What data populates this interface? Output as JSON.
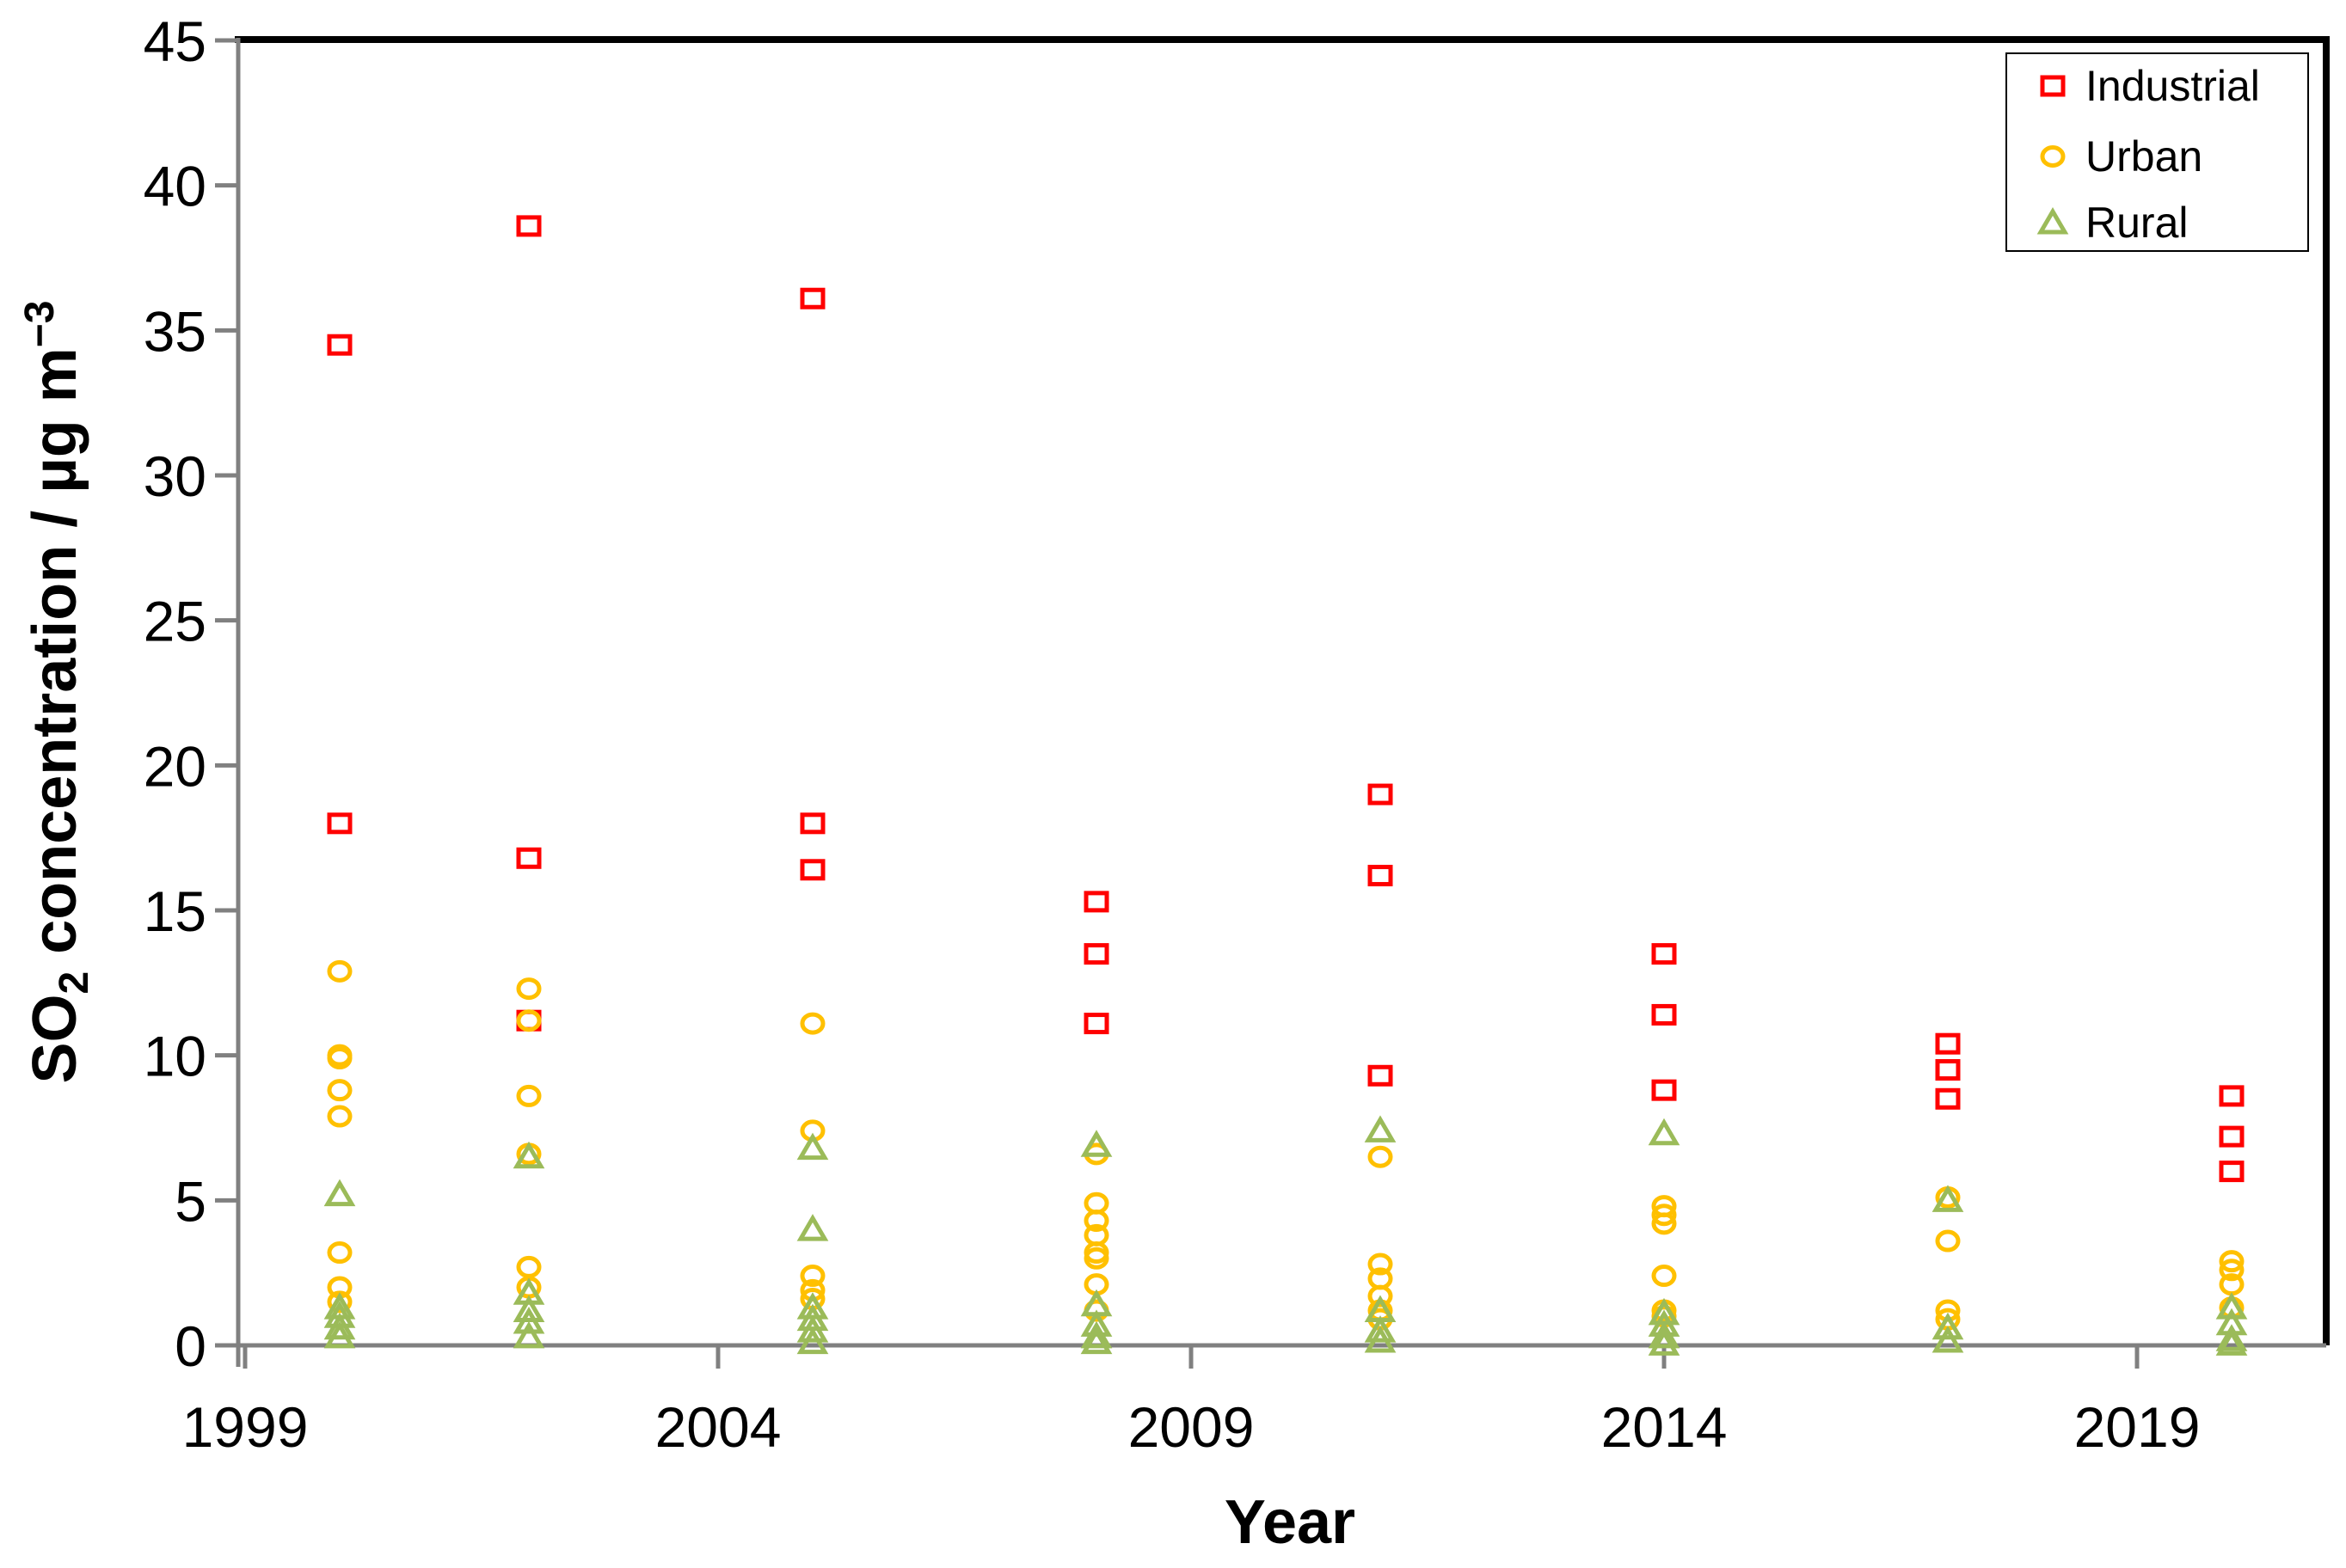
{
  "chart_data": {
    "type": "scatter",
    "title": "",
    "xlabel": "Year",
    "ylabel": "SO2 concentration / µg m−3",
    "ylabel_parts": {
      "prefix": "SO",
      "sub": "2",
      "mid": " concentration / µg m",
      "sup": "−3"
    },
    "xlim": [
      1999,
      2021
    ],
    "ylim": [
      0,
      45
    ],
    "x_ticks": [
      1999,
      2004,
      2009,
      2014,
      2019
    ],
    "y_ticks": [
      0,
      5,
      10,
      15,
      20,
      25,
      30,
      35,
      40,
      45
    ],
    "grid": false,
    "legend_position": "top-right",
    "colors": {
      "axis_line": "#808080",
      "plot_border": "#000000",
      "industrial": "#FF0000",
      "urban": "#FFC000",
      "rural": "#9BBB59"
    },
    "series": [
      {
        "name": "Industrial",
        "marker": "square",
        "color": "#FF0000",
        "points": [
          [
            2000,
            34.5
          ],
          [
            2000,
            18.0
          ],
          [
            2002,
            38.6
          ],
          [
            2002,
            16.8
          ],
          [
            2002,
            11.2
          ],
          [
            2005,
            36.1
          ],
          [
            2005,
            18.0
          ],
          [
            2005,
            16.4
          ],
          [
            2008,
            15.3
          ],
          [
            2008,
            13.5
          ],
          [
            2008,
            11.1
          ],
          [
            2011,
            19.0
          ],
          [
            2011,
            16.2
          ],
          [
            2011,
            9.3
          ],
          [
            2014,
            13.5
          ],
          [
            2014,
            11.4
          ],
          [
            2014,
            8.8
          ],
          [
            2017,
            10.4
          ],
          [
            2017,
            9.5
          ],
          [
            2017,
            8.5
          ],
          [
            2020,
            8.6
          ],
          [
            2020,
            7.2
          ],
          [
            2020,
            6.0
          ]
        ]
      },
      {
        "name": "Urban",
        "marker": "circle",
        "color": "#FFC000",
        "points": [
          [
            2000,
            12.9
          ],
          [
            2000,
            10.0
          ],
          [
            2000,
            9.9
          ],
          [
            2000,
            8.8
          ],
          [
            2000,
            7.9
          ],
          [
            2000,
            3.2
          ],
          [
            2000,
            2.0
          ],
          [
            2000,
            1.5
          ],
          [
            2002,
            12.3
          ],
          [
            2002,
            11.2
          ],
          [
            2002,
            8.6
          ],
          [
            2002,
            6.6
          ],
          [
            2002,
            2.7
          ],
          [
            2002,
            2.0
          ],
          [
            2005,
            11.1
          ],
          [
            2005,
            7.4
          ],
          [
            2005,
            2.4
          ],
          [
            2005,
            1.9
          ],
          [
            2005,
            1.6
          ],
          [
            2008,
            6.6
          ],
          [
            2008,
            4.9
          ],
          [
            2008,
            4.3
          ],
          [
            2008,
            3.8
          ],
          [
            2008,
            3.2
          ],
          [
            2008,
            3.0
          ],
          [
            2008,
            2.1
          ],
          [
            2008,
            1.2
          ],
          [
            2011,
            6.5
          ],
          [
            2011,
            2.8
          ],
          [
            2011,
            2.3
          ],
          [
            2011,
            1.7
          ],
          [
            2011,
            1.2
          ],
          [
            2011,
            0.9
          ],
          [
            2014,
            4.8
          ],
          [
            2014,
            4.5
          ],
          [
            2014,
            4.2
          ],
          [
            2014,
            2.4
          ],
          [
            2014,
            1.2
          ],
          [
            2014,
            1.0
          ],
          [
            2017,
            5.1
          ],
          [
            2017,
            3.6
          ],
          [
            2017,
            1.2
          ],
          [
            2017,
            0.9
          ],
          [
            2020,
            2.9
          ],
          [
            2020,
            2.6
          ],
          [
            2020,
            2.1
          ],
          [
            2020,
            1.3
          ]
        ]
      },
      {
        "name": "Rural",
        "marker": "triangle",
        "color": "#9BBB59",
        "points": [
          [
            2000,
            5.2
          ],
          [
            2000,
            1.3
          ],
          [
            2000,
            1.0
          ],
          [
            2000,
            0.6
          ],
          [
            2000,
            0.3
          ],
          [
            2002,
            6.5
          ],
          [
            2002,
            1.8
          ],
          [
            2002,
            1.2
          ],
          [
            2002,
            0.8
          ],
          [
            2002,
            0.3
          ],
          [
            2005,
            6.8
          ],
          [
            2005,
            4.0
          ],
          [
            2005,
            1.3
          ],
          [
            2005,
            0.9
          ],
          [
            2005,
            0.5
          ],
          [
            2005,
            0.1
          ],
          [
            2008,
            6.9
          ],
          [
            2008,
            1.4
          ],
          [
            2008,
            0.7
          ],
          [
            2008,
            0.3
          ],
          [
            2008,
            0.1
          ],
          [
            2011,
            7.4
          ],
          [
            2011,
            1.2
          ],
          [
            2011,
            0.5
          ],
          [
            2011,
            0.15
          ],
          [
            2014,
            7.3
          ],
          [
            2014,
            1.1
          ],
          [
            2014,
            0.7
          ],
          [
            2014,
            0.3
          ],
          [
            2014,
            0.05
          ],
          [
            2017,
            5.0
          ],
          [
            2017,
            0.6
          ],
          [
            2017,
            0.15
          ],
          [
            2020,
            1.3
          ],
          [
            2020,
            0.75
          ],
          [
            2020,
            0.2
          ],
          [
            2020,
            0.05
          ]
        ]
      }
    ]
  }
}
